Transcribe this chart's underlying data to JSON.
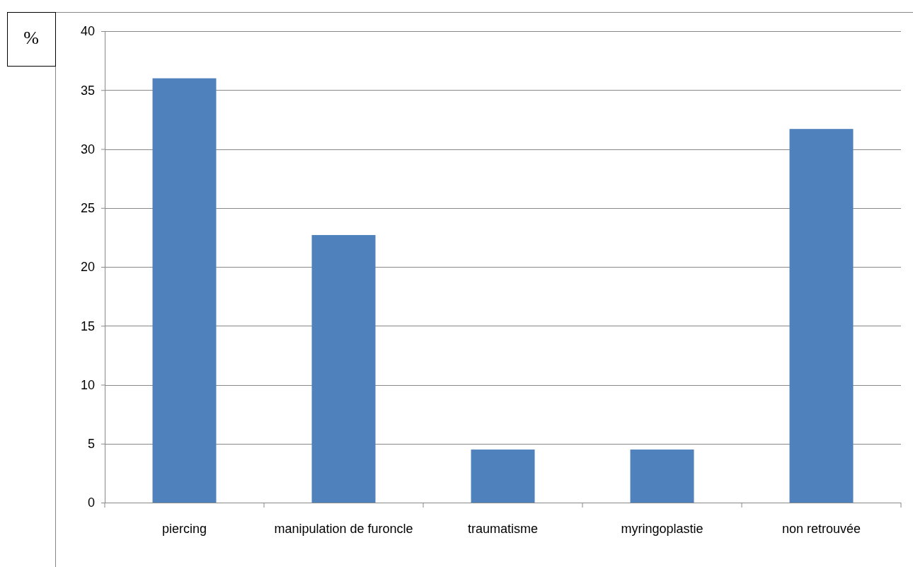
{
  "chart_data": {
    "type": "bar",
    "ylabel": "%",
    "categories": [
      "piercing",
      "manipulation de furoncle",
      "traumatisme",
      "myringoplastie",
      "non retrouvée"
    ],
    "values": [
      36,
      22.7,
      4.5,
      4.5,
      31.7
    ],
    "color": "#4f81bd",
    "ylim": [
      0,
      40
    ],
    "yticks": [
      0,
      5,
      10,
      15,
      20,
      25,
      30,
      35,
      40
    ],
    "grid": "y"
  }
}
